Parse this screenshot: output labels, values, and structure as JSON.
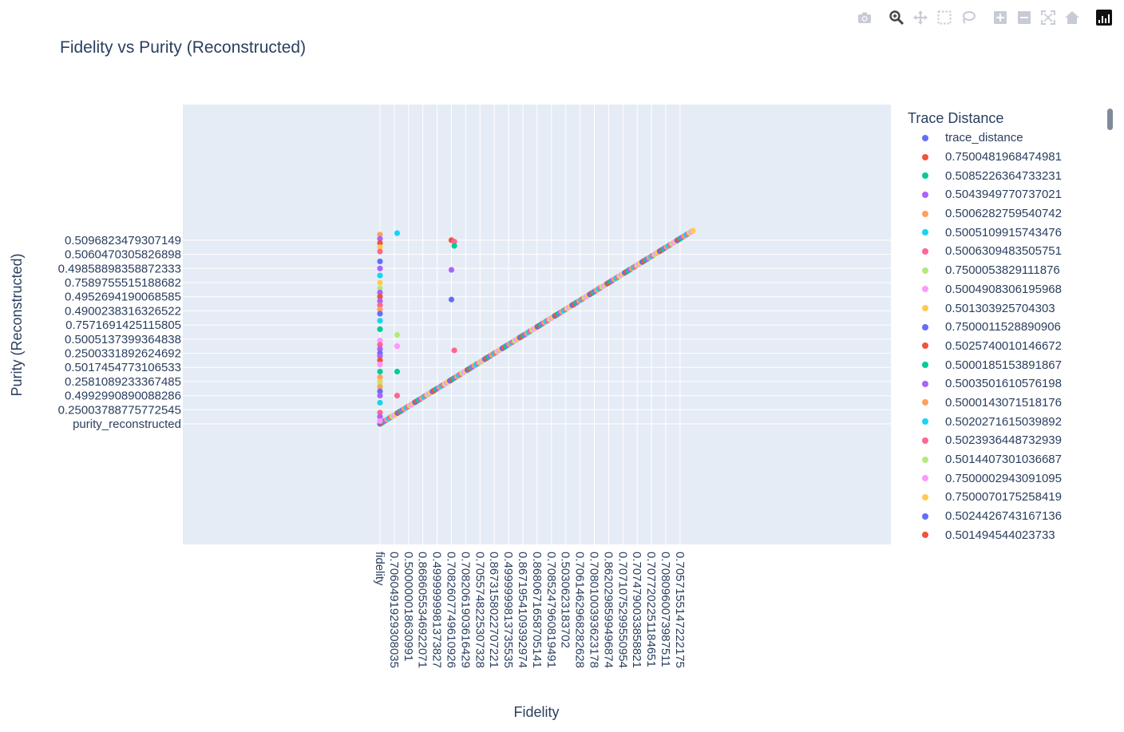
{
  "chart_data": {
    "type": "scatter",
    "title": "Fidelity vs Purity (Reconstructed)",
    "xlabel": "Fidelity",
    "ylabel": "Purity (Reconstructed)",
    "legend_title": "Trace Distance",
    "legend_position": "right",
    "x_axis_type": "category",
    "y_axis_type": "category",
    "x_tick_labels": [
      "fidelity",
      "0.7060491929308035",
      "0.500000018630991",
      "0.8686055346922071",
      "0.4999999981373827",
      "0.7082607749610926",
      "0.7082061903616429",
      "0.7055748225307328",
      "0.8673158022707221",
      "0.4999999813735535",
      "0.8671954109392974",
      "0.8680671658705141",
      "0.7085247960819491",
      "0.5030623183702",
      "0.7061462968282628",
      "0.7080100393623178",
      "0.8620298599496874",
      "0.7071075299550954",
      "0.7074790033858821",
      "0.7077202251184651",
      "0.7080960073987511",
      "0.7057155147222175"
    ],
    "y_tick_labels": [
      "purity_reconstructed",
      "0.25003788775772545",
      "0.4992990890088286",
      "0.2581089233367485",
      "0.5017454773106533",
      "0.2500331892624692",
      "0.5005137399364838",
      "0.7571691425115805",
      "0.4900238316326522",
      "0.4952694190068585",
      "0.7589755515188682",
      "0.49858898358872333",
      "0.5060470305826898",
      "0.5096823479307149"
    ],
    "legend_entries": [
      "trace_distance",
      "0.7500481968474981",
      "0.5085226364733231",
      "0.5043949770737021",
      "0.5006282759540742",
      "0.5005109915743476",
      "0.5006309483505751",
      "0.7500053829111876",
      "0.5004908306195968",
      "0.501303925704303",
      "0.7500011528890906",
      "0.5025740010146672",
      "0.5000185153891867",
      "0.5003501610576198",
      "0.5000143071518176",
      "0.5020271615039892",
      "0.5023936448732939",
      "0.5014407301036687",
      "0.7500002943091095",
      "0.7500070175258419",
      "0.5024426743167136",
      "0.501494544023733"
    ],
    "palette": [
      "#636efa",
      "#EF553B",
      "#00cc96",
      "#ab63fa",
      "#FFA15A",
      "#19d3f3",
      "#FF6692",
      "#B6E880",
      "#FF97FF",
      "#FECB52"
    ],
    "diagonal_points": 180,
    "column_points": [
      {
        "x": 0,
        "y": 13.4,
        "c": 4
      },
      {
        "x": 0,
        "y": 13.1,
        "c": 3
      },
      {
        "x": 0,
        "y": 12.8,
        "c": 1
      },
      {
        "x": 0,
        "y": 12.5,
        "c": 9
      },
      {
        "x": 0,
        "y": 12.2,
        "c": 6
      },
      {
        "x": 0,
        "y": 11.5,
        "c": 0
      },
      {
        "x": 0,
        "y": 11.0,
        "c": 3
      },
      {
        "x": 0,
        "y": 10.5,
        "c": 5
      },
      {
        "x": 0,
        "y": 10.0,
        "c": 9
      },
      {
        "x": 0,
        "y": 9.6,
        "c": 7
      },
      {
        "x": 0,
        "y": 9.3,
        "c": 3
      },
      {
        "x": 0,
        "y": 9.0,
        "c": 1
      },
      {
        "x": 0,
        "y": 8.7,
        "c": 3
      },
      {
        "x": 0,
        "y": 8.4,
        "c": 6
      },
      {
        "x": 0,
        "y": 8.1,
        "c": 4
      },
      {
        "x": 0,
        "y": 7.8,
        "c": 0
      },
      {
        "x": 0,
        "y": 7.3,
        "c": 5
      },
      {
        "x": 0,
        "y": 6.7,
        "c": 2
      },
      {
        "x": 0,
        "y": 5.9,
        "c": 8
      },
      {
        "x": 0,
        "y": 5.6,
        "c": 6
      },
      {
        "x": 0,
        "y": 5.3,
        "c": 3
      },
      {
        "x": 0,
        "y": 5.0,
        "c": 0
      },
      {
        "x": 0,
        "y": 4.8,
        "c": 3
      },
      {
        "x": 0,
        "y": 4.5,
        "c": 1
      },
      {
        "x": 0,
        "y": 4.2,
        "c": 8
      },
      {
        "x": 0,
        "y": 3.7,
        "c": 2
      },
      {
        "x": 0,
        "y": 3.3,
        "c": 4
      },
      {
        "x": 0,
        "y": 3.0,
        "c": 9
      },
      {
        "x": 0,
        "y": 2.8,
        "c": 7
      },
      {
        "x": 0,
        "y": 2.6,
        "c": 4
      },
      {
        "x": 0,
        "y": 2.3,
        "c": 0
      },
      {
        "x": 0,
        "y": 2.0,
        "c": 3
      },
      {
        "x": 0,
        "y": 1.5,
        "c": 5
      },
      {
        "x": 0,
        "y": 0.8,
        "c": 6
      },
      {
        "x": 0,
        "y": 0.5,
        "c": 3
      },
      {
        "x": 0,
        "y": 0.2,
        "c": 8
      },
      {
        "x": 1.2,
        "y": 13.5,
        "c": 5
      },
      {
        "x": 1.2,
        "y": 6.3,
        "c": 7
      },
      {
        "x": 1.2,
        "y": 5.5,
        "c": 8
      },
      {
        "x": 1.2,
        "y": 3.7,
        "c": 2
      },
      {
        "x": 1.2,
        "y": 2.0,
        "c": 6
      },
      {
        "x": 5.0,
        "y": 13.0,
        "c": 1
      },
      {
        "x": 5.2,
        "y": 12.9,
        "c": 6
      },
      {
        "x": 5.2,
        "y": 12.6,
        "c": 2
      },
      {
        "x": 5.0,
        "y": 10.9,
        "c": 3
      },
      {
        "x": 5.0,
        "y": 8.8,
        "c": 0
      },
      {
        "x": 5.2,
        "y": 5.2,
        "c": 6
      }
    ]
  },
  "modebar": {
    "camera_icon": "camera-icon",
    "zoom_icon": "zoom-icon",
    "pan_icon": "pan-icon",
    "box_select_icon": "box-select-icon",
    "lasso_icon": "lasso-icon",
    "zoom_in_icon": "zoom-in-icon",
    "zoom_out_icon": "zoom-out-icon",
    "autoscale_icon": "autoscale-icon",
    "reset_icon": "home-icon",
    "logo_icon": "plotly-logo-icon"
  }
}
